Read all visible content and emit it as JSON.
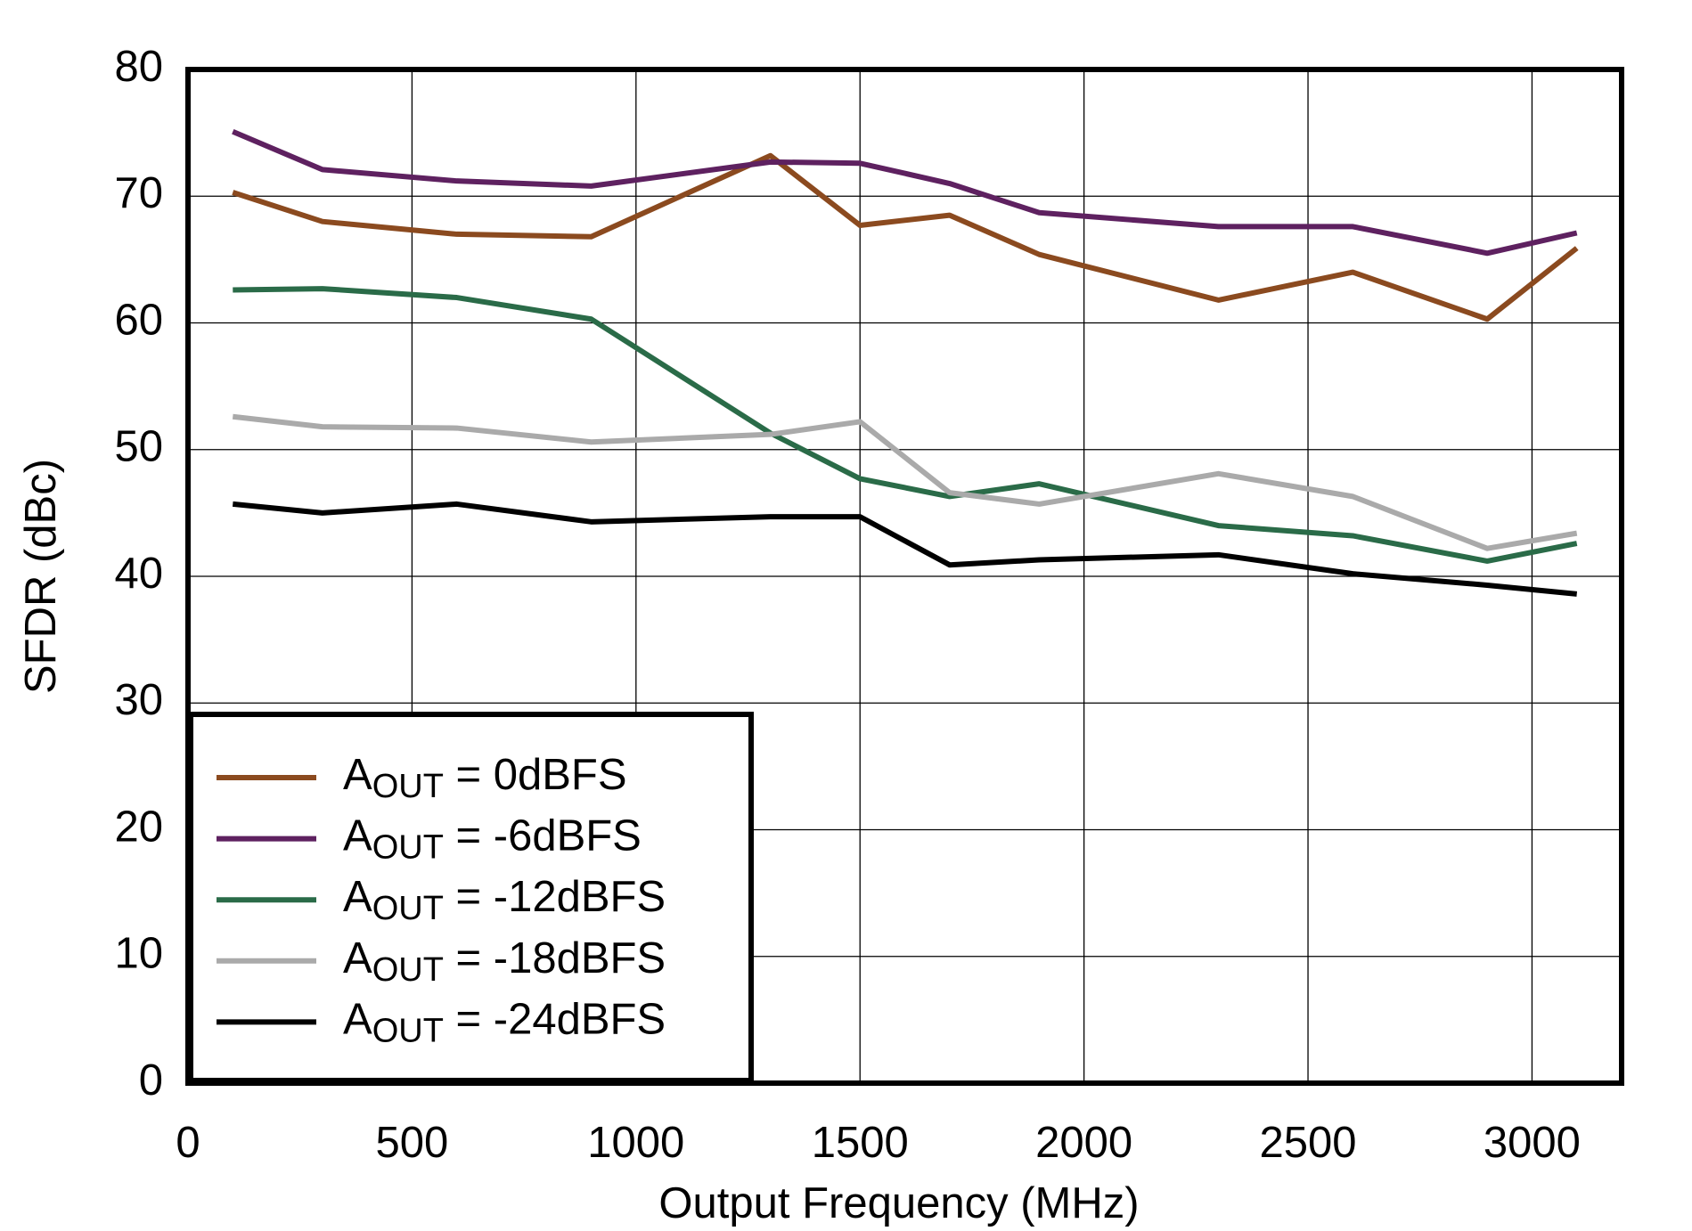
{
  "chart_data": {
    "type": "line",
    "x_label": "Output Frequency (MHz)",
    "y_label": "SFDR (dBc)",
    "xlim": [
      0,
      3200
    ],
    "xticks": [
      0,
      500,
      1000,
      1500,
      2000,
      2500,
      3000
    ],
    "ylim": [
      0,
      80
    ],
    "yticks": [
      0,
      10,
      20,
      30,
      40,
      50,
      60,
      70,
      80
    ],
    "grid": true,
    "legend": "lower left",
    "x": [
      100,
      300,
      600,
      900,
      1300,
      1500,
      1700,
      1900,
      2300,
      2600,
      2900,
      3100
    ],
    "series": [
      {
        "name": "AOUT = 0dBFS",
        "color": "#8b4a1f",
        "values": [
          70.3,
          68.0,
          67.0,
          66.8,
          73.2,
          67.7,
          68.5,
          65.4,
          61.8,
          64.0,
          60.3,
          65.9
        ]
      },
      {
        "name": "AOUT = -6dBFS",
        "color": "#5e2160",
        "values": [
          75.1,
          72.1,
          71.2,
          70.8,
          72.7,
          72.6,
          71.0,
          68.7,
          67.6,
          67.6,
          65.5,
          67.1
        ]
      },
      {
        "name": "AOUT = -12dBFS",
        "color": "#2a6b48",
        "values": [
          62.6,
          62.7,
          62.0,
          60.3,
          51.3,
          47.7,
          46.3,
          47.3,
          44.0,
          43.2,
          41.2,
          42.6
        ]
      },
      {
        "name": "AOUT = -18dBFS",
        "color": "#aaaaaa",
        "values": [
          52.6,
          51.8,
          51.7,
          50.6,
          51.2,
          52.2,
          46.6,
          45.7,
          48.1,
          46.3,
          42.2,
          43.4
        ]
      },
      {
        "name": "AOUT = -24dBFS",
        "color": "#000000",
        "values": [
          45.7,
          45.0,
          45.7,
          44.3,
          44.7,
          44.7,
          40.9,
          41.3,
          41.7,
          40.2,
          39.3,
          38.6
        ]
      }
    ]
  }
}
